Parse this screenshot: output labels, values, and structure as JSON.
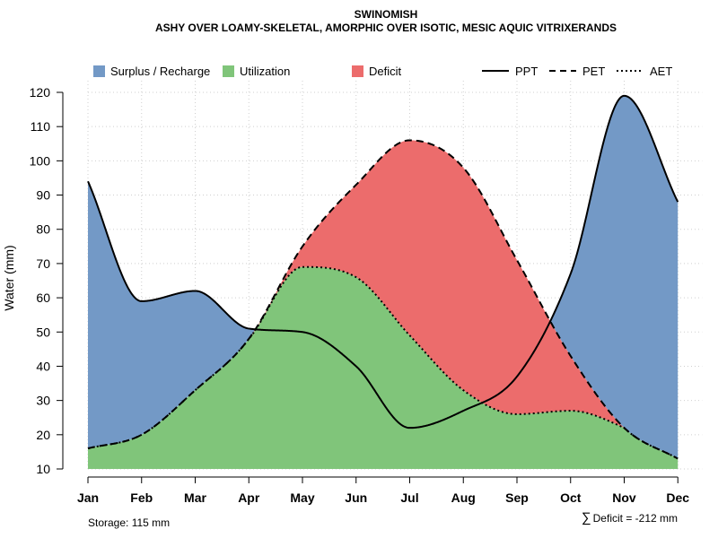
{
  "chart_data": {
    "type": "area",
    "title": "SWINOMISH",
    "subtitle": "ASHY OVER LOAMY-SKELETAL, AMORPHIC OVER ISOTIC, MESIC AQUIC VITRIXERANDS",
    "ylabel": "Water (mm)",
    "xlabel": "",
    "ylim": [
      10,
      122
    ],
    "yticks": [
      10,
      20,
      30,
      40,
      50,
      60,
      70,
      80,
      90,
      100,
      110,
      120
    ],
    "grid": true,
    "categories": [
      "Jan",
      "Feb",
      "Mar",
      "Apr",
      "May",
      "Jun",
      "Jul",
      "Aug",
      "Sep",
      "Oct",
      "Nov",
      "Dec"
    ],
    "series": [
      {
        "name": "PPT",
        "style": "solid",
        "values": [
          94,
          59,
          62,
          51,
          50,
          40,
          22,
          27,
          37,
          67,
          119,
          88
        ]
      },
      {
        "name": "PET",
        "style": "dashed",
        "values": [
          16,
          20,
          33,
          48,
          75,
          93,
          106,
          98,
          71,
          43,
          22,
          13
        ]
      },
      {
        "name": "AET",
        "style": "dotted",
        "values": [
          16,
          20,
          33,
          48,
          69,
          66,
          49,
          33,
          26,
          27,
          22,
          13
        ]
      }
    ],
    "legend_areas": [
      {
        "name": "Surplus / Recharge",
        "color": "#7399c6"
      },
      {
        "name": "Utilization",
        "color": "#80c57a"
      },
      {
        "name": "Deficit",
        "color": "#ec6c6c"
      }
    ],
    "legend_lines": [
      {
        "name": "PPT",
        "style": "solid"
      },
      {
        "name": "PET",
        "style": "dashed"
      },
      {
        "name": "AET",
        "style": "dotted"
      }
    ],
    "legend_position": "top"
  },
  "footer": {
    "storage": "Storage: 115 mm",
    "deficit_symbol": "∑",
    "deficit": "Deficit = -212 mm"
  }
}
